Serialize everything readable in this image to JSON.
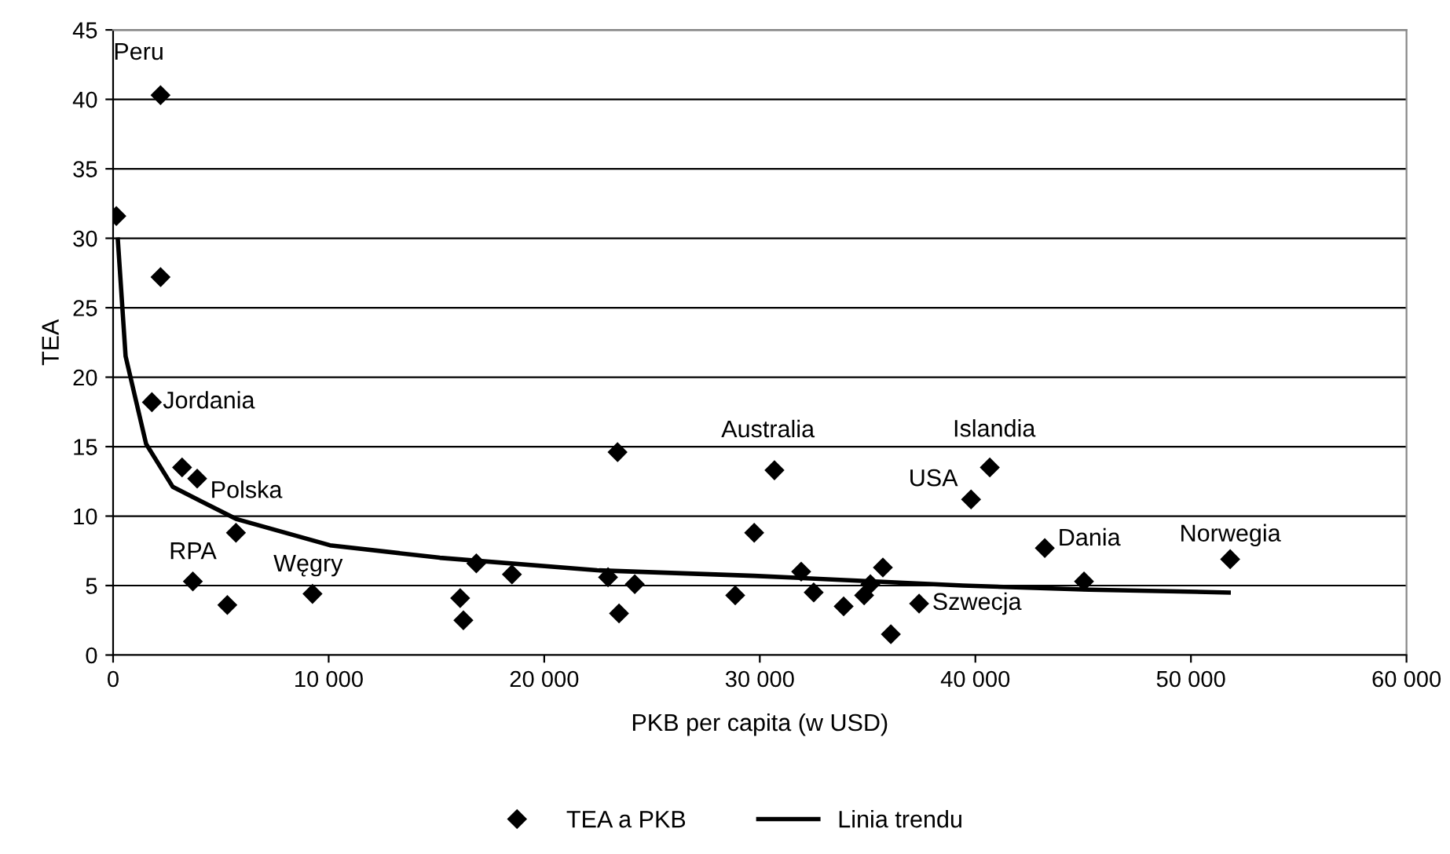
{
  "chart_data": {
    "type": "scatter",
    "xlabel": "PKB per capita (w USD)",
    "ylabel": "TEA",
    "xlim": [
      0,
      60000
    ],
    "ylim": [
      0,
      45
    ],
    "xticks": [
      0,
      {
        "value": 10000,
        "label": "10 000"
      },
      {
        "value": 20000,
        "label": "20 000"
      },
      {
        "value": 30000,
        "label": "30 000"
      },
      {
        "value": 40000,
        "label": "40 000"
      },
      {
        "value": 50000,
        "label": "50 000"
      },
      {
        "value": 60000,
        "label": "60 000"
      }
    ],
    "yticks": [
      0,
      5,
      10,
      15,
      20,
      25,
      30,
      35,
      40,
      45
    ],
    "grid": "y",
    "legend": "bottom",
    "series": [
      {
        "name": "TEA a PKB",
        "marker": "diamond",
        "color": "#000000",
        "x": [
          150,
          2200,
          2200,
          1800,
          3200,
          3900,
          3700,
          5300,
          5700,
          9250,
          16100,
          16250,
          16850,
          18500,
          22960,
          23400,
          23470,
          24200,
          28860,
          29740,
          30680,
          31920,
          32500,
          33890,
          34840,
          35130,
          35710,
          36080,
          37390,
          39800,
          40670,
          43220,
          45040,
          51820
        ],
        "values": [
          31.6,
          40.3,
          27.2,
          18.2,
          13.5,
          12.7,
          5.3,
          3.6,
          8.8,
          4.4,
          4.1,
          2.5,
          6.6,
          5.8,
          5.6,
          14.6,
          3.0,
          5.1,
          4.3,
          8.8,
          13.3,
          6.0,
          4.5,
          3.5,
          4.3,
          5.1,
          6.3,
          1.5,
          3.7,
          11.2,
          13.5,
          7.7,
          5.3,
          6.9
        ]
      },
      {
        "name": "Linia trendu",
        "type": "line",
        "marker": "none",
        "line_style": "solid",
        "color": "#000000",
        "x": [
          220,
          580,
          1530,
          2770,
          5700,
          10060,
          15160,
          22450,
          29740,
          39430,
          45260,
          51750
        ],
        "values": [
          29.9,
          21.5,
          15.2,
          12.1,
          9.8,
          7.9,
          7.0,
          6.1,
          5.7,
          5.0,
          4.7,
          4.5
        ]
      }
    ],
    "annotations": [
      {
        "text": "Peru",
        "x": 2200,
        "y": 40.3
      },
      {
        "text": "Jordania",
        "x": 1800,
        "y": 18.2
      },
      {
        "text": "Polska",
        "x": 3900,
        "y": 12.7
      },
      {
        "text": "RPA",
        "x": 3700,
        "y": 5.3
      },
      {
        "text": "Węgry",
        "x": 9250,
        "y": 4.4
      },
      {
        "text": "Australia",
        "x": 30680,
        "y": 13.3
      },
      {
        "text": "USA",
        "x": 39800,
        "y": 11.2
      },
      {
        "text": "Islandia",
        "x": 40670,
        "y": 13.5
      },
      {
        "text": "Dania",
        "x": 43220,
        "y": 7.7
      },
      {
        "text": "Norwegia",
        "x": 51820,
        "y": 6.9
      },
      {
        "text": "Szwecja",
        "x": 37390,
        "y": 3.7
      }
    ]
  }
}
